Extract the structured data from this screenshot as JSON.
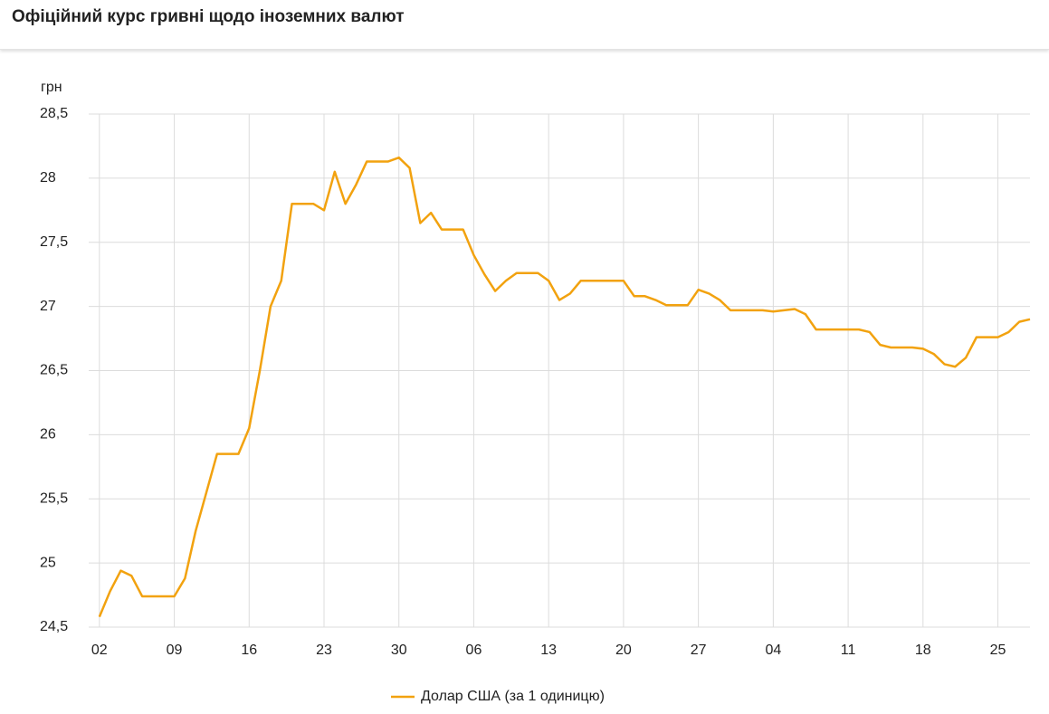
{
  "chart_data": {
    "type": "line",
    "title": "Офіційний курс гривні щодо іноземних валют",
    "y_label": "грн",
    "x": [
      0,
      1,
      2,
      3,
      4,
      5,
      6,
      7,
      8,
      9,
      10,
      11,
      12,
      13,
      14,
      15,
      16,
      17,
      18,
      19,
      20,
      21,
      22,
      23,
      24,
      25,
      26,
      27,
      28,
      29,
      30,
      31,
      32,
      33,
      34,
      35,
      36,
      37,
      38,
      39,
      40,
      41,
      42,
      43,
      44,
      45,
      46,
      47,
      48,
      49,
      50,
      51,
      52,
      53,
      54,
      55,
      56,
      57,
      58,
      59,
      60,
      61,
      62,
      63,
      64,
      65,
      66,
      67,
      68,
      69,
      70,
      71,
      72,
      73,
      74,
      75,
      76,
      77,
      78,
      79,
      80,
      81,
      82,
      83,
      84,
      85,
      86,
      87
    ],
    "series": [
      {
        "name": "Долар США (за 1 одиницю)",
        "color": "#f2a20f",
        "values": [
          24.58,
          24.78,
          24.94,
          24.9,
          24.74,
          24.74,
          24.74,
          24.74,
          24.88,
          25.25,
          25.55,
          25.85,
          25.85,
          25.85,
          26.05,
          26.5,
          27.0,
          27.2,
          27.8,
          27.8,
          27.8,
          27.75,
          28.05,
          27.8,
          27.95,
          28.13,
          28.13,
          28.13,
          28.16,
          28.08,
          27.65,
          27.73,
          27.6,
          27.6,
          27.6,
          27.4,
          27.25,
          27.12,
          27.2,
          27.26,
          27.26,
          27.26,
          27.2,
          27.05,
          27.1,
          27.2,
          27.2,
          27.2,
          27.2,
          27.2,
          27.08,
          27.08,
          27.05,
          27.01,
          27.01,
          27.01,
          27.13,
          27.1,
          27.05,
          26.97,
          26.97,
          26.97,
          26.97,
          26.96,
          26.97,
          26.98,
          26.94,
          26.82,
          26.82,
          26.82,
          26.82,
          26.82,
          26.8,
          26.7,
          26.68,
          26.68,
          26.68,
          26.67,
          26.63,
          26.55,
          26.53,
          26.6,
          26.76,
          26.76,
          26.76,
          26.8,
          26.88,
          26.9
        ]
      }
    ],
    "xlim": [
      -1,
      87
    ],
    "xticks": [
      {
        "value": 0,
        "label": "02"
      },
      {
        "value": 7,
        "label": "09"
      },
      {
        "value": 14,
        "label": "16"
      },
      {
        "value": 21,
        "label": "23"
      },
      {
        "value": 28,
        "label": "30"
      },
      {
        "value": 35,
        "label": "06"
      },
      {
        "value": 42,
        "label": "13"
      },
      {
        "value": 49,
        "label": "20"
      },
      {
        "value": 56,
        "label": "27"
      },
      {
        "value": 63,
        "label": "04"
      },
      {
        "value": 70,
        "label": "11"
      },
      {
        "value": 77,
        "label": "18"
      },
      {
        "value": 84,
        "label": "25"
      }
    ],
    "ylim": [
      24.5,
      28.5
    ],
    "yticks": [
      {
        "value": 24.5,
        "label": "24,5"
      },
      25,
      {
        "value": 25.5,
        "label": "25,5"
      },
      26,
      {
        "value": 26.5,
        "label": "26,5"
      },
      27,
      {
        "value": 27.5,
        "label": "27,5"
      },
      28,
      {
        "value": 28.5,
        "label": "28,5"
      }
    ],
    "grid": true,
    "legend": "bottom"
  }
}
